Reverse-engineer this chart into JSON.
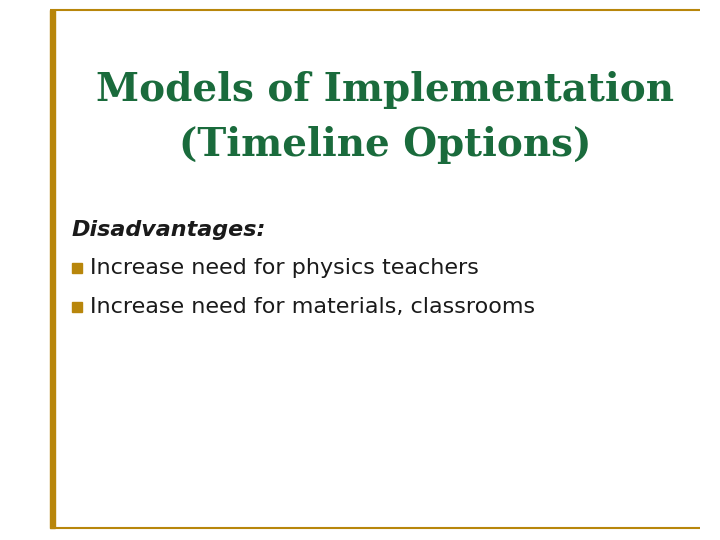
{
  "title_line1": "Models of Implementation",
  "title_line2": "(Timeline Options)",
  "title_color": "#1a6b3c",
  "section_label": "Disadvantages:",
  "section_color": "#1a1a1a",
  "bullet_color": "#b8860b",
  "bullet_text_color": "#1a1a1a",
  "bullets": [
    "Increase need for physics teachers",
    "Increase need for materials, classrooms"
  ],
  "background_color": "#ffffff",
  "left_bar_color": "#b8860b",
  "top_border_color": "#b8860b",
  "bottom_border_color": "#b8860b",
  "title_fontsize": 28,
  "section_fontsize": 16,
  "bullet_fontsize": 16
}
